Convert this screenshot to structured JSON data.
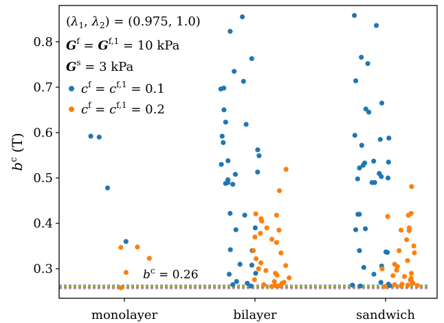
{
  "chart_data": {
    "type": "scatter",
    "xlabel": "",
    "ylabel": "b^c (T)",
    "ylabel_main": "b",
    "ylabel_sup": "c",
    "ylabel_unit": " (T)",
    "categories": [
      "monolayer",
      "bilayer",
      "sandwich"
    ],
    "ylim": [
      0.235,
      0.88
    ],
    "yticks": [
      0.3,
      0.4,
      0.5,
      0.6,
      0.7,
      0.8
    ],
    "ytick_labels": [
      "0.3",
      "0.4",
      "0.5",
      "0.6",
      "0.7",
      "0.8"
    ],
    "grid": false,
    "legend_position": "top-left",
    "legend_lines": [
      {
        "text": "(λ1, λ2) = (0.975, 1.0)"
      },
      {
        "text": "Gf = Gf,1 = 10 kPa"
      },
      {
        "text": "Gs = 3 kPa"
      }
    ],
    "series": [
      {
        "name": "cf = cf,1 = 0.1",
        "color": "#1f77b4",
        "points": [
          {
            "category": "monolayer",
            "y": 0.478
          },
          {
            "category": "monolayer",
            "y": 0.592
          },
          {
            "category": "monolayer",
            "y": 0.59
          },
          {
            "category": "monolayer",
            "y": 0.36
          },
          {
            "category": "bilayer",
            "y": 0.855
          },
          {
            "category": "bilayer",
            "y": 0.823
          },
          {
            "category": "bilayer",
            "y": 0.763
          },
          {
            "category": "bilayer",
            "y": 0.735
          },
          {
            "category": "bilayer",
            "y": 0.713
          },
          {
            "category": "bilayer",
            "y": 0.698
          },
          {
            "category": "bilayer",
            "y": 0.696
          },
          {
            "category": "bilayer",
            "y": 0.65
          },
          {
            "category": "bilayer",
            "y": 0.623
          },
          {
            "category": "bilayer",
            "y": 0.618
          },
          {
            "category": "bilayer",
            "y": 0.592
          },
          {
            "category": "bilayer",
            "y": 0.578
          },
          {
            "category": "bilayer",
            "y": 0.562
          },
          {
            "category": "bilayer",
            "y": 0.549
          },
          {
            "category": "bilayer",
            "y": 0.538
          },
          {
            "category": "bilayer",
            "y": 0.53
          },
          {
            "category": "bilayer",
            "y": 0.513
          },
          {
            "category": "bilayer",
            "y": 0.508
          },
          {
            "category": "bilayer",
            "y": 0.496
          },
          {
            "category": "bilayer",
            "y": 0.49
          },
          {
            "category": "bilayer",
            "y": 0.488
          },
          {
            "category": "bilayer",
            "y": 0.486
          },
          {
            "category": "bilayer",
            "y": 0.422
          },
          {
            "category": "bilayer",
            "y": 0.418
          },
          {
            "category": "bilayer",
            "y": 0.386
          },
          {
            "category": "bilayer",
            "y": 0.39
          },
          {
            "category": "bilayer",
            "y": 0.342
          },
          {
            "category": "bilayer",
            "y": 0.34
          },
          {
            "category": "bilayer",
            "y": 0.31
          },
          {
            "category": "bilayer",
            "y": 0.308
          },
          {
            "category": "bilayer",
            "y": 0.29
          },
          {
            "category": "bilayer",
            "y": 0.288
          },
          {
            "category": "bilayer",
            "y": 0.272
          },
          {
            "category": "bilayer",
            "y": 0.268
          },
          {
            "category": "bilayer",
            "y": 0.265
          },
          {
            "category": "bilayer",
            "y": 0.262
          },
          {
            "category": "sandwich",
            "y": 0.858
          },
          {
            "category": "sandwich",
            "y": 0.836
          },
          {
            "category": "sandwich",
            "y": 0.766
          },
          {
            "category": "sandwich",
            "y": 0.752
          },
          {
            "category": "sandwich",
            "y": 0.714
          },
          {
            "category": "sandwich",
            "y": 0.665
          },
          {
            "category": "sandwich",
            "y": 0.652
          },
          {
            "category": "sandwich",
            "y": 0.645
          },
          {
            "category": "sandwich",
            "y": 0.594
          },
          {
            "category": "sandwich",
            "y": 0.588
          },
          {
            "category": "sandwich",
            "y": 0.585
          },
          {
            "category": "sandwich",
            "y": 0.572
          },
          {
            "category": "sandwich",
            "y": 0.537
          },
          {
            "category": "sandwich",
            "y": 0.535
          },
          {
            "category": "sandwich",
            "y": 0.533
          },
          {
            "category": "sandwich",
            "y": 0.528
          },
          {
            "category": "sandwich",
            "y": 0.522
          },
          {
            "category": "sandwich",
            "y": 0.51
          },
          {
            "category": "sandwich",
            "y": 0.503
          },
          {
            "category": "sandwich",
            "y": 0.5
          },
          {
            "category": "sandwich",
            "y": 0.498
          },
          {
            "category": "sandwich",
            "y": 0.49
          },
          {
            "category": "sandwich",
            "y": 0.49
          },
          {
            "category": "sandwich",
            "y": 0.42
          },
          {
            "category": "sandwich",
            "y": 0.42
          },
          {
            "category": "sandwich",
            "y": 0.388
          },
          {
            "category": "sandwich",
            "y": 0.386
          },
          {
            "category": "sandwich",
            "y": 0.337
          },
          {
            "category": "sandwich",
            "y": 0.336
          },
          {
            "category": "sandwich",
            "y": 0.34
          },
          {
            "category": "sandwich",
            "y": 0.306
          },
          {
            "category": "sandwich",
            "y": 0.303
          },
          {
            "category": "sandwich",
            "y": 0.288
          },
          {
            "category": "sandwich",
            "y": 0.27
          },
          {
            "category": "sandwich",
            "y": 0.266
          },
          {
            "category": "sandwich",
            "y": 0.264
          },
          {
            "category": "sandwich",
            "y": 0.263
          },
          {
            "category": "sandwich",
            "y": 0.262
          }
        ]
      },
      {
        "name": "cf = cf,1 = 0.2",
        "color": "#ff7f0e",
        "points": [
          {
            "category": "monolayer",
            "y": 0.348
          },
          {
            "category": "monolayer",
            "y": 0.347
          },
          {
            "category": "monolayer",
            "y": 0.323
          },
          {
            "category": "monolayer",
            "y": 0.292
          },
          {
            "category": "monolayer",
            "y": 0.258
          },
          {
            "category": "bilayer",
            "y": 0.519
          },
          {
            "category": "bilayer",
            "y": 0.472
          },
          {
            "category": "bilayer",
            "y": 0.421
          },
          {
            "category": "bilayer",
            "y": 0.418
          },
          {
            "category": "bilayer",
            "y": 0.41
          },
          {
            "category": "bilayer",
            "y": 0.405
          },
          {
            "category": "bilayer",
            "y": 0.39
          },
          {
            "category": "bilayer",
            "y": 0.385
          },
          {
            "category": "bilayer",
            "y": 0.378
          },
          {
            "category": "bilayer",
            "y": 0.37
          },
          {
            "category": "bilayer",
            "y": 0.365
          },
          {
            "category": "bilayer",
            "y": 0.358
          },
          {
            "category": "bilayer",
            "y": 0.34
          },
          {
            "category": "bilayer",
            "y": 0.335
          },
          {
            "category": "bilayer",
            "y": 0.322
          },
          {
            "category": "bilayer",
            "y": 0.313
          },
          {
            "category": "bilayer",
            "y": 0.307
          },
          {
            "category": "bilayer",
            "y": 0.3
          },
          {
            "category": "bilayer",
            "y": 0.296
          },
          {
            "category": "bilayer",
            "y": 0.29
          },
          {
            "category": "bilayer",
            "y": 0.286
          },
          {
            "category": "bilayer",
            "y": 0.28
          },
          {
            "category": "bilayer",
            "y": 0.276
          },
          {
            "category": "bilayer",
            "y": 0.272
          },
          {
            "category": "bilayer",
            "y": 0.27
          },
          {
            "category": "bilayer",
            "y": 0.268
          },
          {
            "category": "bilayer",
            "y": 0.265
          },
          {
            "category": "bilayer",
            "y": 0.263
          },
          {
            "category": "bilayer",
            "y": 0.262
          },
          {
            "category": "bilayer",
            "y": 0.261
          },
          {
            "category": "sandwich",
            "y": 0.481
          },
          {
            "category": "sandwich",
            "y": 0.422
          },
          {
            "category": "sandwich",
            "y": 0.418
          },
          {
            "category": "sandwich",
            "y": 0.415
          },
          {
            "category": "sandwich",
            "y": 0.39
          },
          {
            "category": "sandwich",
            "y": 0.385
          },
          {
            "category": "sandwich",
            "y": 0.384
          },
          {
            "category": "sandwich",
            "y": 0.364
          },
          {
            "category": "sandwich",
            "y": 0.35
          },
          {
            "category": "sandwich",
            "y": 0.34
          },
          {
            "category": "sandwich",
            "y": 0.335
          },
          {
            "category": "sandwich",
            "y": 0.318
          },
          {
            "category": "sandwich",
            "y": 0.31
          },
          {
            "category": "sandwich",
            "y": 0.305
          },
          {
            "category": "sandwich",
            "y": 0.3
          },
          {
            "category": "sandwich",
            "y": 0.297
          },
          {
            "category": "sandwich",
            "y": 0.29
          },
          {
            "category": "sandwich",
            "y": 0.285
          },
          {
            "category": "sandwich",
            "y": 0.283
          },
          {
            "category": "sandwich",
            "y": 0.279
          },
          {
            "category": "sandwich",
            "y": 0.275
          },
          {
            "category": "sandwich",
            "y": 0.27
          },
          {
            "category": "sandwich",
            "y": 0.268
          },
          {
            "category": "sandwich",
            "y": 0.266
          },
          {
            "category": "sandwich",
            "y": 0.265
          },
          {
            "category": "sandwich",
            "y": 0.264
          },
          {
            "category": "sandwich",
            "y": 0.263
          },
          {
            "category": "sandwich",
            "y": 0.262
          },
          {
            "category": "sandwich",
            "y": 0.261
          }
        ]
      }
    ],
    "reference_lines": [
      {
        "y": 0.264,
        "color": "#1f77b4",
        "style": "dashed"
      },
      {
        "y": 0.262,
        "color": "#2ca02c",
        "style": "dashed"
      },
      {
        "y": 0.26,
        "color": "#ff7f0e",
        "style": "dashed"
      },
      {
        "y": 0.258,
        "color": "#d62728",
        "style": "dashed"
      },
      {
        "y": 0.256,
        "color": "#7f7f7f",
        "style": "dashed"
      }
    ],
    "annotations": [
      {
        "text": "bc = 0.26",
        "main": "b",
        "sup": "c",
        "rest": " = 0.26",
        "y": 0.26
      }
    ]
  }
}
